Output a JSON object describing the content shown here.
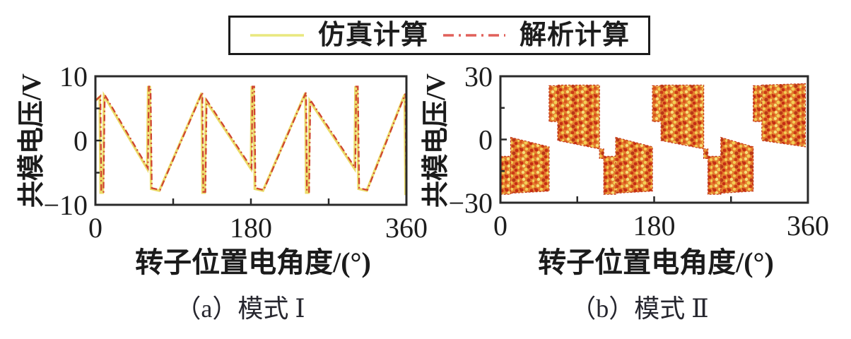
{
  "page": {
    "background": "#ffffff"
  },
  "legend": {
    "items": [
      {
        "label": "仿真计算",
        "line_style": "solid",
        "color": "#e9e87e"
      },
      {
        "label": "解析计算",
        "line_style": "dash-dot",
        "color": "#e0605a"
      }
    ]
  },
  "chart_data": [
    {
      "type": "line",
      "caption": "（a）模式 Ⅰ",
      "xlabel": "转子位置电角度/(°)",
      "ylabel": "共模电压/V",
      "xlim": [
        0,
        360
      ],
      "ylim": [
        -10,
        10
      ],
      "grid": false,
      "xticks": {
        "major": [
          {
            "v": 0,
            "label": "0"
          },
          {
            "v": 180,
            "label": "180"
          },
          {
            "v": 360,
            "label": "360"
          }
        ],
        "minor": [
          90,
          270
        ]
      },
      "yticks": {
        "major": [
          {
            "v": 10,
            "label": "10"
          },
          {
            "v": 0,
            "label": "0"
          },
          {
            "v": -10,
            "label": "−10"
          }
        ],
        "minor": [
          5,
          -5
        ]
      },
      "series": [
        {
          "name": "仿真计算",
          "style": "solid",
          "color": "#ecdc6a",
          "width": 3.5
        },
        {
          "name": "解析计算",
          "style": "dash-dot",
          "color": "#cf4530",
          "width": 2.3
        }
      ],
      "points": [
        [
          0,
          6.2
        ],
        [
          5,
          6.8
        ],
        [
          6,
          -8.1
        ],
        [
          8.5,
          -8.1
        ],
        [
          10,
          7.0
        ],
        [
          60,
          -4.4
        ],
        [
          61,
          8.3
        ],
        [
          63,
          8.3
        ],
        [
          64.5,
          -7.5
        ],
        [
          74,
          -7.8
        ],
        [
          123,
          7.4
        ],
        [
          124,
          -8.1
        ],
        [
          126.5,
          -8.1
        ],
        [
          128,
          6.2
        ],
        [
          180,
          -4.4
        ],
        [
          181,
          8.3
        ],
        [
          183,
          8.3
        ],
        [
          184.5,
          -7.5
        ],
        [
          194,
          -7.8
        ],
        [
          243,
          7.4
        ],
        [
          244,
          -8.1
        ],
        [
          246.5,
          -8.1
        ],
        [
          248,
          6.2
        ],
        [
          300,
          -4.4
        ],
        [
          301,
          8.3
        ],
        [
          303,
          8.3
        ],
        [
          304.5,
          -7.5
        ],
        [
          314,
          -7.8
        ],
        [
          358,
          7.2
        ],
        [
          359,
          -8.3
        ],
        [
          360,
          -8.3
        ]
      ]
    },
    {
      "type": "area",
      "caption": "（b）模式 Ⅱ",
      "xlabel": "转子位置电角度/(°)",
      "ylabel": "共模电压/V",
      "xlim": [
        0,
        360
      ],
      "ylim": [
        -30,
        30
      ],
      "grid": false,
      "xticks": {
        "major": [
          {
            "v": 0,
            "label": "0"
          },
          {
            "v": 180,
            "label": "180"
          },
          {
            "v": 360,
            "label": "360"
          }
        ],
        "minor": [
          90,
          270
        ]
      },
      "yticks": {
        "major": [
          {
            "v": 30,
            "label": "30"
          },
          {
            "v": 0,
            "label": "0"
          },
          {
            "v": -30,
            "label": "−30"
          }
        ],
        "minor": [
          15,
          -15
        ]
      },
      "series": [
        {
          "name": "仿真计算",
          "style": "solid",
          "color": "#ecdc6a"
        },
        {
          "name": "解析计算",
          "style": "dash-dot",
          "color": "#cf4530"
        }
      ],
      "bands": [
        {
          "x": [
            0,
            12
          ],
          "top": [
            -8,
            -8
          ],
          "bottom": [
            -26,
            -26
          ]
        },
        {
          "x": [
            12,
            57
          ],
          "top": [
            1,
            -3.5
          ],
          "bottom": [
            -25.5,
            -24.5
          ]
        },
        {
          "x": [
            57,
            67
          ],
          "top": [
            25.5,
            25.5
          ],
          "bottom": [
            8.5,
            8.5
          ]
        },
        {
          "x": [
            67,
            116
          ],
          "top": [
            25.8,
            25.8
          ],
          "bottom": [
            -0.5,
            -4.5
          ]
        },
        {
          "x": [
            116,
            121
          ],
          "top": [
            -4.5,
            -4.5
          ],
          "bottom": [
            -9,
            -9
          ]
        },
        {
          "x": [
            121,
            135
          ],
          "top": [
            -8,
            -8
          ],
          "bottom": [
            -26,
            -26
          ]
        },
        {
          "x": [
            135,
            178
          ],
          "top": [
            1,
            -3.5
          ],
          "bottom": [
            -25.5,
            -24.5
          ]
        },
        {
          "x": [
            178,
            188
          ],
          "top": [
            25.5,
            25.5
          ],
          "bottom": [
            8.5,
            8.5
          ]
        },
        {
          "x": [
            188,
            238
          ],
          "top": [
            25.8,
            25.8
          ],
          "bottom": [
            -0.5,
            -4.5
          ]
        },
        {
          "x": [
            238,
            243
          ],
          "top": [
            -4.5,
            -4.5
          ],
          "bottom": [
            -9,
            -9
          ]
        },
        {
          "x": [
            243,
            258
          ],
          "top": [
            -8,
            -8
          ],
          "bottom": [
            -26,
            -26
          ]
        },
        {
          "x": [
            258,
            296
          ],
          "top": [
            1,
            -3.5
          ],
          "bottom": [
            -25.5,
            -24.5
          ]
        },
        {
          "x": [
            296,
            306
          ],
          "top": [
            25.5,
            25.5
          ],
          "bottom": [
            8.5,
            8.5
          ]
        },
        {
          "x": [
            306,
            357
          ],
          "top": [
            25.8,
            26.5
          ],
          "bottom": [
            -0.5,
            -3.5
          ]
        }
      ]
    }
  ]
}
